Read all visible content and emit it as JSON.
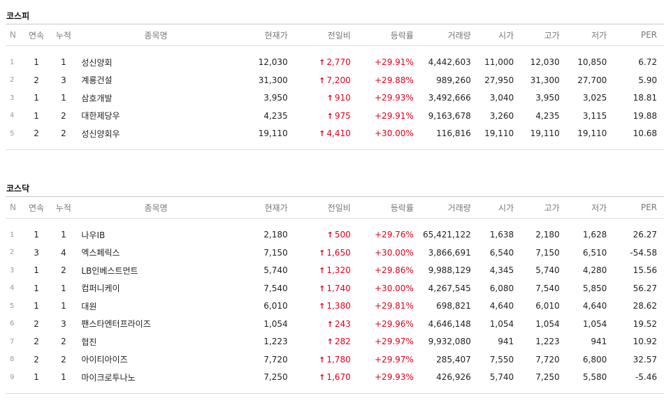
{
  "kospi": {
    "title": "코스피",
    "headers": [
      "N",
      "연속",
      "누적",
      "종목명",
      "현재가",
      "전일비",
      "등락률",
      "거래량",
      "시가",
      "고가",
      "저가",
      "PER"
    ],
    "rows": [
      {
        "n": "1",
        "consec": "1",
        "cum": "1",
        "name": "성신양회",
        "price": "12,030",
        "change": "2,770",
        "rate": "+29.91%",
        "volume": "4,442,603",
        "open": "11,000",
        "high": "12,030",
        "low": "10,850",
        "per": "6.72"
      },
      {
        "n": "2",
        "consec": "2",
        "cum": "3",
        "name": "계룡건설",
        "price": "31,300",
        "change": "7,200",
        "rate": "+29.88%",
        "volume": "989,260",
        "open": "27,950",
        "high": "31,300",
        "low": "27,700",
        "per": "5.90"
      },
      {
        "n": "3",
        "consec": "1",
        "cum": "1",
        "name": "삼호개발",
        "price": "3,950",
        "change": "910",
        "rate": "+29.93%",
        "volume": "3,492,666",
        "open": "3,040",
        "high": "3,950",
        "low": "3,025",
        "per": "18.81"
      },
      {
        "n": "4",
        "consec": "1",
        "cum": "2",
        "name": "대한제당우",
        "price": "4,235",
        "change": "975",
        "rate": "+29.91%",
        "volume": "9,163,678",
        "open": "3,260",
        "high": "4,235",
        "low": "3,115",
        "per": "19.88"
      },
      {
        "n": "5",
        "consec": "2",
        "cum": "2",
        "name": "성신양회우",
        "price": "19,110",
        "change": "4,410",
        "rate": "+30.00%",
        "volume": "116,816",
        "open": "19,110",
        "high": "19,110",
        "low": "19,110",
        "per": "10.68"
      }
    ]
  },
  "kosdaq": {
    "title": "코스닥",
    "headers": [
      "N",
      "연속",
      "누적",
      "종목명",
      "현재가",
      "전일비",
      "등락률",
      "거래량",
      "시가",
      "고가",
      "저가",
      "PER"
    ],
    "rows": [
      {
        "n": "1",
        "consec": "1",
        "cum": "1",
        "name": "나우IB",
        "price": "2,180",
        "change": "500",
        "rate": "+29.76%",
        "volume": "65,421,122",
        "open": "1,638",
        "high": "2,180",
        "low": "1,628",
        "per": "26.27"
      },
      {
        "n": "2",
        "consec": "3",
        "cum": "4",
        "name": "엑스페릭스",
        "price": "7,150",
        "change": "1,650",
        "rate": "+30.00%",
        "volume": "3,866,691",
        "open": "6,540",
        "high": "7,150",
        "low": "6,510",
        "per": "-54.58"
      },
      {
        "n": "3",
        "consec": "1",
        "cum": "2",
        "name": "LB인베스트먼트",
        "price": "5,740",
        "change": "1,320",
        "rate": "+29.86%",
        "volume": "9,988,129",
        "open": "4,345",
        "high": "5,740",
        "low": "4,280",
        "per": "15.56"
      },
      {
        "n": "4",
        "consec": "1",
        "cum": "1",
        "name": "컴퍼니케이",
        "price": "7,540",
        "change": "1,740",
        "rate": "+30.00%",
        "volume": "4,267,545",
        "open": "6,080",
        "high": "7,540",
        "low": "5,850",
        "per": "56.27"
      },
      {
        "n": "5",
        "consec": "1",
        "cum": "1",
        "name": "대원",
        "price": "6,010",
        "change": "1,380",
        "rate": "+29.81%",
        "volume": "698,821",
        "open": "4,640",
        "high": "6,010",
        "low": "4,640",
        "per": "28.62"
      },
      {
        "n": "6",
        "consec": "2",
        "cum": "3",
        "name": "팬스타엔터프라이즈",
        "price": "1,054",
        "change": "243",
        "rate": "+29.96%",
        "volume": "4,646,148",
        "open": "1,054",
        "high": "1,054",
        "low": "1,054",
        "per": "19.52"
      },
      {
        "n": "7",
        "consec": "2",
        "cum": "2",
        "name": "협진",
        "price": "1,223",
        "change": "282",
        "rate": "+29.97%",
        "volume": "9,932,080",
        "open": "941",
        "high": "1,223",
        "low": "941",
        "per": "10.92"
      },
      {
        "n": "8",
        "consec": "2",
        "cum": "2",
        "name": "아이티아이즈",
        "price": "7,720",
        "change": "1,780",
        "rate": "+29.97%",
        "volume": "285,407",
        "open": "7,550",
        "high": "7,720",
        "low": "6,800",
        "per": "32.57"
      },
      {
        "n": "9",
        "consec": "1",
        "cum": "1",
        "name": "마이크로투나노",
        "price": "7,250",
        "change": "1,670",
        "rate": "+29.93%",
        "volume": "426,926",
        "open": "5,740",
        "high": "7,250",
        "low": "5,580",
        "per": "-5.46"
      }
    ]
  },
  "icons": {
    "up_arrow": "up-arrow-icon"
  },
  "colors": {
    "up": "#e0001b",
    "header_text": "#777777",
    "border": "#dcdcdc"
  }
}
